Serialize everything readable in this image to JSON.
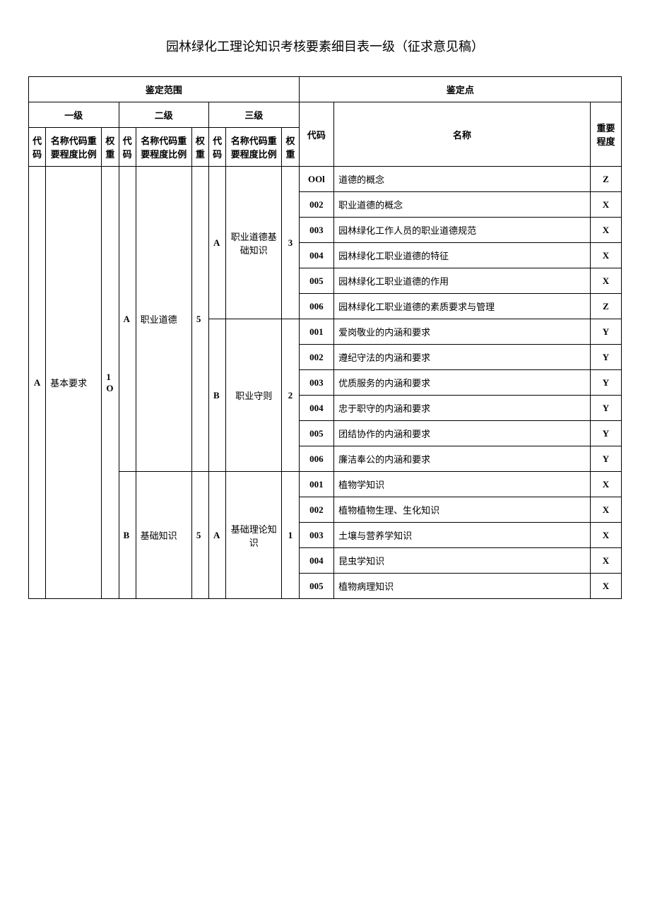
{
  "title": "园林绿化工理论知识考核要素细目表一级（征求意见稿）",
  "headers": {
    "scope": "鉴定范围",
    "point": "鉴定点",
    "level1": "一级",
    "level2": "二级",
    "level3": "三级",
    "code": "代码",
    "name_ratio": "名称代码重要程度比例",
    "weight": "权重",
    "name": "名称",
    "importance": "重要程度"
  },
  "level1": {
    "code": "A",
    "name": "基本要求",
    "weight": "1O"
  },
  "level2": [
    {
      "code": "A",
      "name": "职业道德",
      "weight": "5"
    },
    {
      "code": "B",
      "name": "基础知识",
      "weight": "5"
    }
  ],
  "level3": [
    {
      "code": "A",
      "name": "职业道德基础知识",
      "weight": "3"
    },
    {
      "code": "B",
      "name": "职业守则",
      "weight": "2"
    },
    {
      "code": "A",
      "name": "基础理论知识",
      "weight": "1"
    }
  ],
  "rows": [
    {
      "code": "OOl",
      "name": "道德的概念",
      "imp": "Z"
    },
    {
      "code": "002",
      "name": "职业道德的概念",
      "imp": "X"
    },
    {
      "code": "003",
      "name": "园林绿化工作人员的职业道德规范",
      "imp": "X"
    },
    {
      "code": "004",
      "name": "园林绿化工职业道德的特征",
      "imp": "X"
    },
    {
      "code": "005",
      "name": "园林绿化工职业道德的作用",
      "imp": "X"
    },
    {
      "code": "006",
      "name": "园林绿化工职业道德的素质要求与管理",
      "imp": "Z"
    },
    {
      "code": "001",
      "name": "爱岗敬业的内涵和要求",
      "imp": "Y"
    },
    {
      "code": "002",
      "name": "遵纪守法的内涵和要求",
      "imp": "Y"
    },
    {
      "code": "003",
      "name": "优质服务的内涵和要求",
      "imp": "Y"
    },
    {
      "code": "004",
      "name": "忠于职守的内涵和要求",
      "imp": "Y"
    },
    {
      "code": "005",
      "name": "团结协作的内涵和要求",
      "imp": "Y"
    },
    {
      "code": "006",
      "name": "廉洁奉公的内涵和要求",
      "imp": "Y"
    },
    {
      "code": "001",
      "name": "植物学知识",
      "imp": "X"
    },
    {
      "code": "002",
      "name": "植物植物生理、生化知识",
      "imp": "X"
    },
    {
      "code": "003",
      "name": "土壤与营养学知识",
      "imp": "X"
    },
    {
      "code": "004",
      "name": "昆虫学知识",
      "imp": "X"
    },
    {
      "code": "005",
      "name": "植物病理知识",
      "imp": "X"
    }
  ]
}
